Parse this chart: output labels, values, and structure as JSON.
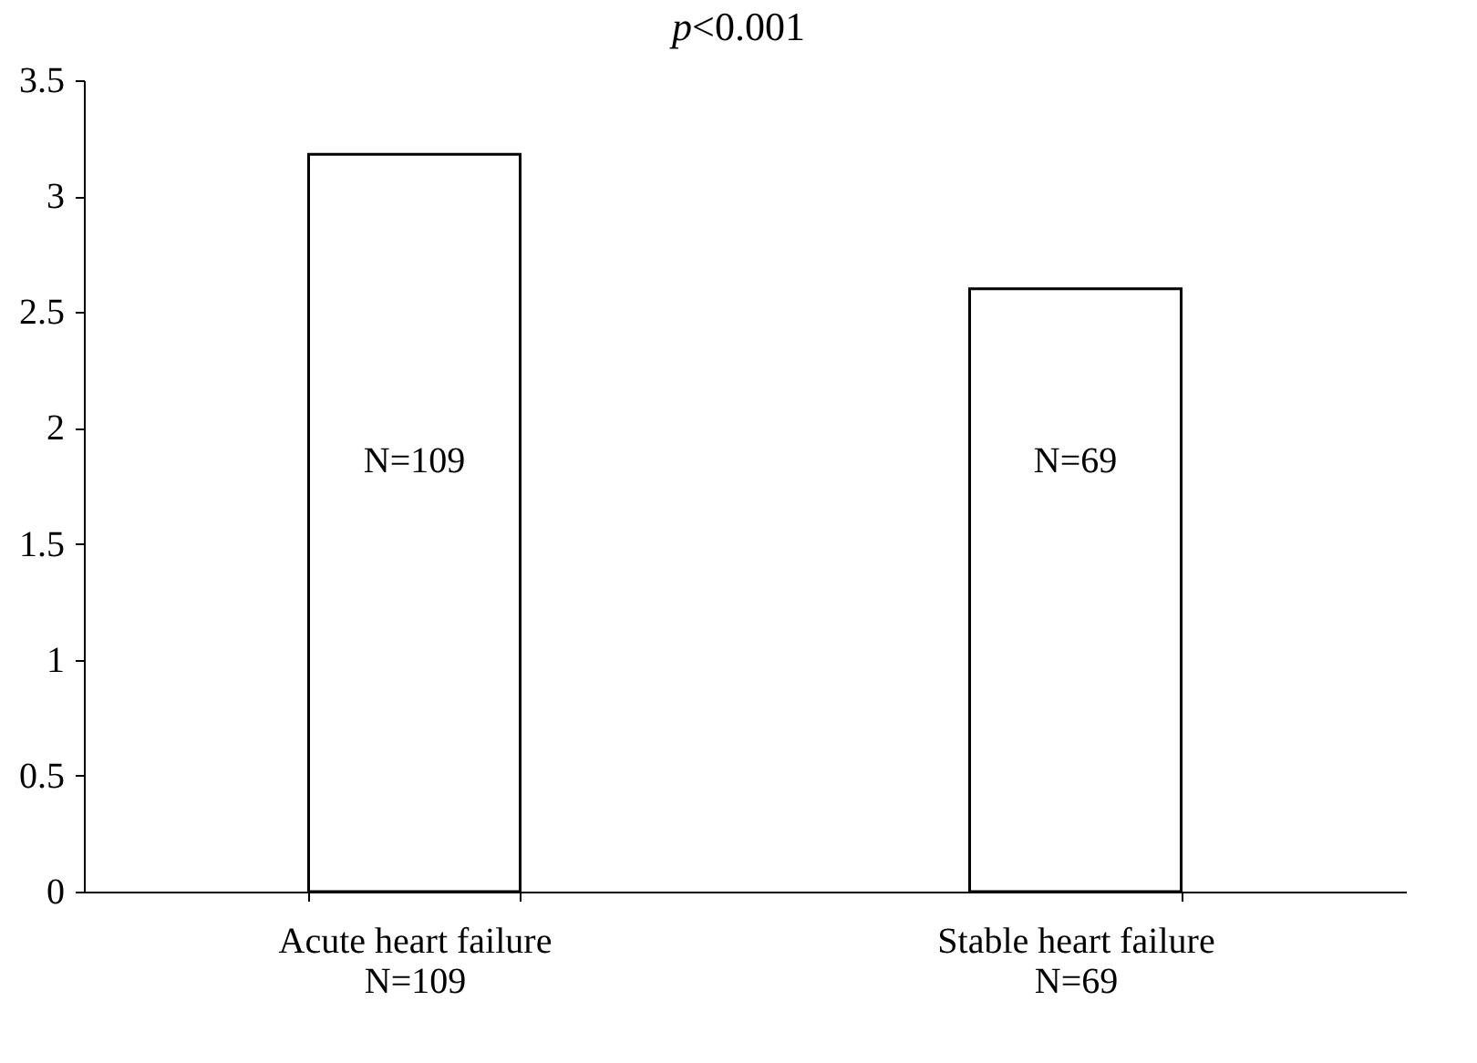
{
  "chart_data": {
    "type": "bar",
    "categories": [
      "Acute heart failure\nN=109",
      "Stable heart failure\nN=69"
    ],
    "values": [
      3.18,
      2.6
    ],
    "color": "#ffffff",
    "ylim": [
      0,
      3.5
    ],
    "yticks": [
      0,
      0.5,
      1,
      1.5,
      2,
      2.5,
      3,
      3.5
    ],
    "grid": false,
    "annotations": [
      "p<0.001",
      "N=109",
      "N=69"
    ]
  }
}
